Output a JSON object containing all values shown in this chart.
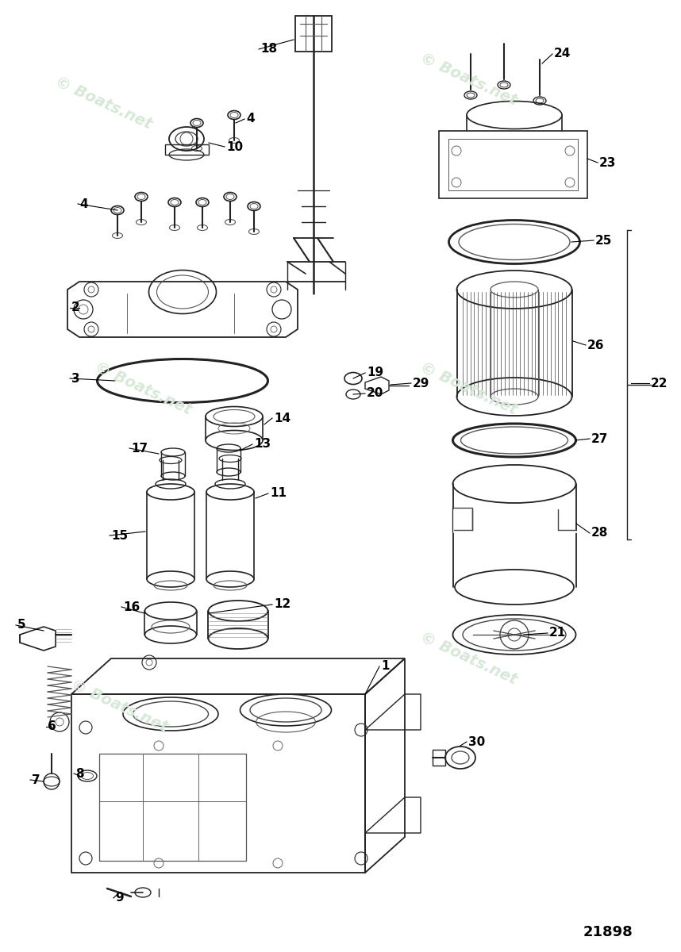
{
  "bg_color": "#ffffff",
  "watermark_color": "#d8e8d8",
  "watermark_text": "© Boats.net",
  "diagram_number": "21898",
  "fig_w": 8.58,
  "fig_h": 12.0,
  "dpi": 100
}
